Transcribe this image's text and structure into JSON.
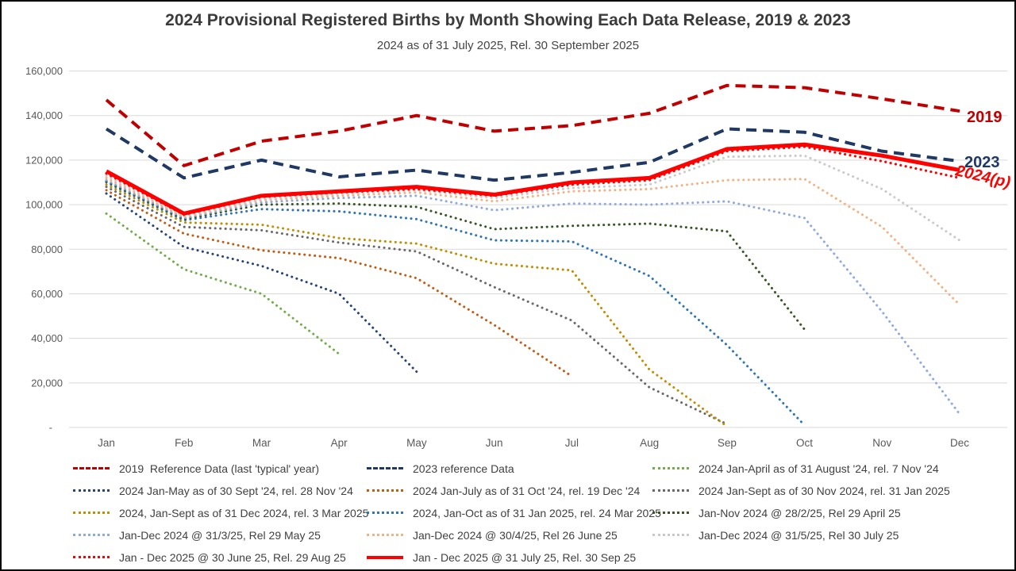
{
  "title": "2024 Provisional Registered Births by Month Showing Each Data Release, 2019 & 2023",
  "subtitle": "2024 as of 31 July 2025, Rel. 30 September 2025",
  "chart_data": {
    "type": "line",
    "title": "2024 Provisional Registered Births by Month Showing Each Data Release, 2019 & 2023",
    "subtitle": "2024 as of 31 July 2025, Rel. 30 September 2025",
    "categories": [
      "Jan",
      "Feb",
      "Mar",
      "Apr",
      "May",
      "Jun",
      "Jul",
      "Aug",
      "Sep",
      "Oct",
      "Nov",
      "Dec"
    ],
    "y_axis": {
      "min": 0,
      "max": 160000,
      "step": 20000,
      "ticks": [
        "-",
        "20,000",
        "40,000",
        "60,000",
        "80,000",
        "100,000",
        "120,000",
        "140,000",
        "160,000"
      ],
      "grid": true
    },
    "legend_position": "bottom",
    "series": [
      {
        "name": "2019  Reference Data (last 'typical' year)",
        "color": "#C00000",
        "style": "dashed",
        "width": 4,
        "values": [
          147000,
          117500,
          128500,
          133000,
          140000,
          133000,
          135500,
          141000,
          153500,
          152500,
          147500,
          142000
        ]
      },
      {
        "name": "2023 reference Data",
        "color": "#1F3864",
        "style": "dashed",
        "width": 4,
        "values": [
          134000,
          112000,
          120000,
          112500,
          115500,
          111000,
          114500,
          119000,
          134000,
          132500,
          124000,
          119500
        ]
      },
      {
        "name": "2024 Jan-April as of 31 August '24, rel. 7 Nov '24",
        "color": "#70AD47",
        "style": "dotted",
        "width": 3,
        "values": [
          96000,
          71000,
          60000,
          33000,
          null,
          null,
          null,
          null,
          null,
          null,
          null,
          null
        ]
      },
      {
        "name": "2024 Jan-May as of 30 Sept '24, rel. 28 Nov '24",
        "color": "#264478",
        "style": "dotted",
        "width": 3,
        "values": [
          105000,
          81000,
          72500,
          60000,
          25000,
          null,
          null,
          null,
          null,
          null,
          null,
          null
        ]
      },
      {
        "name": "2024 Jan-July as of 31 Oct '24, rel. 19 Dec '24",
        "color": "#C55A11",
        "style": "dotted",
        "width": 3,
        "values": [
          106500,
          87000,
          79500,
          76000,
          67000,
          46000,
          23000,
          null,
          null,
          null,
          null,
          null
        ]
      },
      {
        "name": "2024 Jan-Sept as of 30 Nov 2024, rel. 31 Jan 2025",
        "color": "#696969",
        "style": "dotted",
        "width": 3,
        "values": [
          108000,
          90000,
          88500,
          83000,
          79000,
          63000,
          48000,
          18000,
          1500,
          null,
          null,
          null
        ]
      },
      {
        "name": "2024, Jan-Sept as of 31 Dec 2024, rel. 3 Mar 2025",
        "color": "#BF8F00",
        "style": "dotted",
        "width": 3,
        "values": [
          109000,
          92000,
          91000,
          85000,
          82500,
          73500,
          70500,
          26000,
          500,
          null,
          null,
          null
        ]
      },
      {
        "name": "2024, Jan-Oct as of 31 Jan 2025, rel. 24 Mar 2025",
        "color": "#2E75B6",
        "style": "dotted",
        "width": 3,
        "values": [
          110000,
          93000,
          98000,
          97000,
          93500,
          84000,
          83500,
          68000,
          37000,
          1000,
          null,
          null
        ]
      },
      {
        "name": "Jan-Nov 2024 @ 28/2/25, Rel 29 April 25",
        "color": "#375623",
        "style": "dotted",
        "width": 3,
        "values": [
          110500,
          93500,
          100000,
          100500,
          99000,
          89000,
          90500,
          91500,
          88000,
          44000,
          null,
          null
        ]
      },
      {
        "name": "Jan-Dec 2024 @ 31/3/25, Rel 29 May 25",
        "color": "#8FAADC",
        "style": "dotted",
        "width": 3,
        "values": [
          111000,
          94000,
          101000,
          103000,
          104000,
          97500,
          100500,
          100000,
          101500,
          94000,
          52000,
          6000
        ]
      },
      {
        "name": "Jan-Dec 2024 @ 30/4/25, Rel 26 June 25",
        "color": "#F4B183",
        "style": "dotted",
        "width": 3,
        "values": [
          112000,
          94500,
          102000,
          104000,
          105500,
          101500,
          106000,
          107000,
          111000,
          111500,
          90000,
          55000
        ]
      },
      {
        "name": "Jan-Dec 2024 @ 31/5/25, Rel 30 July 25",
        "color": "#C9C9C9",
        "style": "dotted",
        "width": 3,
        "values": [
          113000,
          95000,
          102500,
          105000,
          106500,
          103000,
          107500,
          109000,
          121500,
          122000,
          107000,
          84000
        ]
      },
      {
        "name": "Jan - Dec 2025 @ 30 June 25, Rel. 29 Aug 25",
        "color": "#FF0000",
        "style": "dotted",
        "width": 3.2,
        "values": [
          114000,
          95500,
          103500,
          105500,
          107000,
          104000,
          109000,
          111000,
          124000,
          126000,
          119500,
          112000
        ]
      },
      {
        "name": "Jan - Dec 2025 @ 31 July 25, Rel. 30 Sep 25",
        "color": "#FF0000",
        "style": "solid",
        "width": 5,
        "values": [
          115000,
          96000,
          104000,
          106000,
          108000,
          104500,
          110000,
          112000,
          125000,
          127000,
          122000,
          115500
        ]
      }
    ],
    "end_labels": [
      {
        "text": "2019",
        "color": "#C00000"
      },
      {
        "text": "2023",
        "color": "#1F3864"
      },
      {
        "text": "2024(p)",
        "color": "#FF0000",
        "italic": true
      }
    ]
  }
}
